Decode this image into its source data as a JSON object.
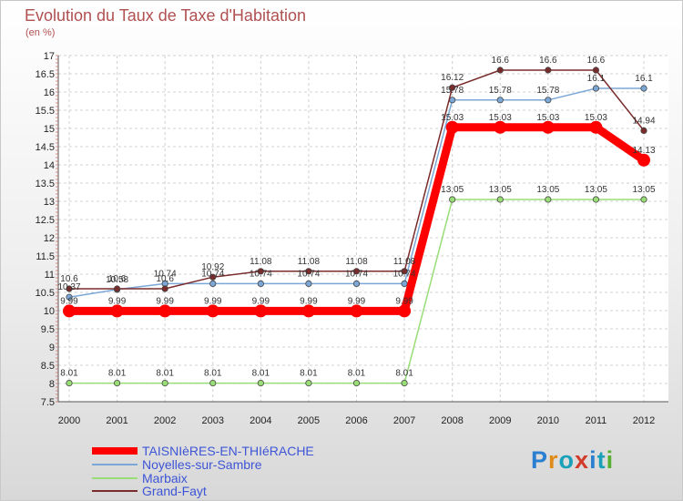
{
  "title": "Evolution du Taux de Taxe d'Habitation",
  "unit": "(en %)",
  "logo": {
    "text": "Proxiti",
    "colors": [
      "#2b7fd0",
      "#e08a1a",
      "#1aa0b8",
      "#d23a2a",
      "#2b7fd0",
      "#1aa0b8",
      "#58b030"
    ]
  },
  "chart_data": {
    "type": "line",
    "title": "Evolution du Taux de Taxe d'Habitation",
    "ylabel": "(en %)",
    "ylim": [
      7.5,
      17
    ],
    "ystep": 0.5,
    "yticks": [
      "7.5",
      "8",
      "8.5",
      "9",
      "9.5",
      "10",
      "10.5",
      "11",
      "11.5",
      "12",
      "12.5",
      "13",
      "13.5",
      "14",
      "14.5",
      "15",
      "15.5",
      "16",
      "16.5",
      "17"
    ],
    "categories": [
      "2000",
      "2001",
      "2002",
      "2003",
      "2004",
      "2005",
      "2006",
      "2007",
      "2008",
      "2009",
      "2010",
      "2011",
      "2012"
    ],
    "series": [
      {
        "name": "TAISNIèRES-EN-THIéRACHE",
        "color": "#ff0000",
        "values": [
          9.99,
          9.99,
          9.99,
          9.99,
          9.99,
          9.99,
          9.99,
          9.99,
          15.03,
          15.03,
          15.03,
          15.03,
          14.13
        ],
        "labels": [
          "9.99",
          "9.99",
          "9.99",
          "9.99",
          "9.99",
          "9.99",
          "9.99",
          "9.99",
          "15.03",
          "15.03",
          "15.03",
          "15.03",
          "14.13"
        ]
      },
      {
        "name": "Noyelles-sur-Sambre",
        "color": "#7ba7d7",
        "values": [
          10.37,
          10.58,
          10.74,
          10.74,
          10.74,
          10.74,
          10.74,
          10.74,
          15.78,
          15.78,
          15.78,
          16.1,
          16.1
        ],
        "labels": [
          "10.37",
          "10.58",
          "10.74",
          "10.74",
          "10.74",
          "10.74",
          "10.74",
          "10.74",
          "15.78",
          "15.78",
          "15.78",
          "16.1",
          "16.1"
        ]
      },
      {
        "name": "Marbaix",
        "color": "#99dd77",
        "values": [
          8.01,
          8.01,
          8.01,
          8.01,
          8.01,
          8.01,
          8.01,
          8.01,
          13.05,
          13.05,
          13.05,
          13.05,
          13.05
        ],
        "labels": [
          "8.01",
          "8.01",
          "8.01",
          "8.01",
          "8.01",
          "8.01",
          "8.01",
          "8.01",
          "13.05",
          "13.05",
          "13.05",
          "13.05",
          "13.05"
        ]
      },
      {
        "name": "Grand-Fayt",
        "color": "#7a2b2b",
        "values": [
          10.6,
          10.6,
          10.6,
          10.92,
          11.08,
          11.08,
          11.08,
          11.08,
          16.12,
          16.6,
          16.6,
          16.6,
          14.94
        ],
        "labels": [
          "10.6",
          "10.6",
          "10.6",
          "10.92",
          "11.08",
          "11.08",
          "11.08",
          "11.08",
          "16.12",
          "16.6",
          "16.6",
          "16.6",
          "14.94"
        ]
      }
    ]
  }
}
